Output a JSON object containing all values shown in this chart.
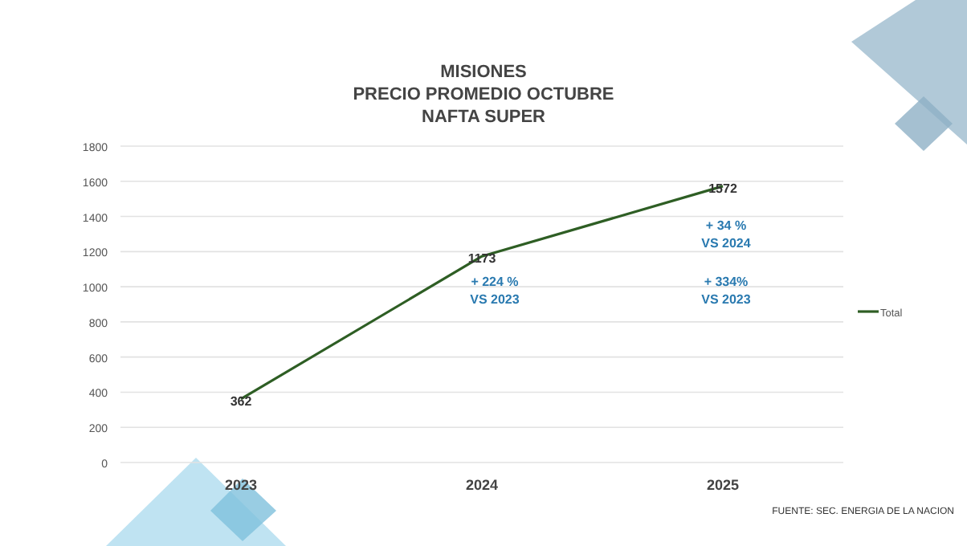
{
  "chart_data": {
    "type": "line",
    "title": "MISIONES\nPRECIO PROMEDIO OCTUBRE\nNAFTA SUPER",
    "categories": [
      "2023",
      "2024",
      "2025"
    ],
    "series": [
      {
        "name": "Total",
        "color": "#2e5e24",
        "values": [
          362,
          1173,
          1572
        ]
      }
    ],
    "ylim": [
      0,
      1800
    ],
    "yticks": [
      0,
      200,
      400,
      600,
      800,
      1000,
      1200,
      1400,
      1600,
      1800
    ],
    "grid": "y",
    "legend": "right",
    "marker": "none",
    "line_style": "solid",
    "data_labels": true,
    "annotations": [
      "+ 224 %\nVS 2023",
      "+ 34 %\nVS 2024",
      "+ 334%\nVS 2023",
      "FUENTE: SEC. ENERGIA DE LA NACION"
    ]
  }
}
